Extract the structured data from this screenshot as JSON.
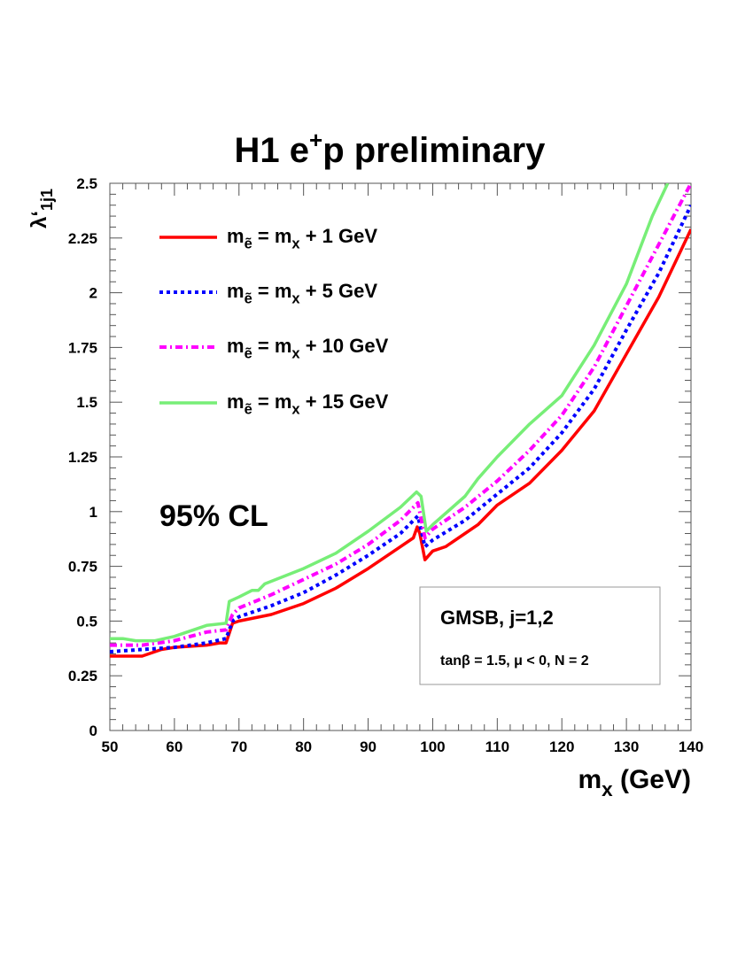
{
  "chart_data": {
    "type": "line",
    "title": "H1 e+p preliminary",
    "title_parts": {
      "main": "H1 e",
      "sup": "+",
      "rest": "p preliminary"
    },
    "xlabel": "m_x (GeV)",
    "ylabel": "λ‘_1j1",
    "xlim": [
      50,
      140
    ],
    "ylim": [
      0,
      2.5
    ],
    "x_ticks": [
      "50",
      "60",
      "70",
      "80",
      "90",
      "100",
      "110",
      "120",
      "130",
      "140"
    ],
    "y_ticks": [
      "0",
      "0.25",
      "0.5",
      "0.75",
      "1",
      "1.25",
      "1.5",
      "1.75",
      "2",
      "2.25",
      "2.5"
    ],
    "grid": false,
    "legend_position": "top-left",
    "annotations": {
      "cl": "95% CL",
      "box_title": "GMSB, j=1,2",
      "box_params": "tanβ = 1.5,  μ < 0,  N = 2"
    },
    "series": [
      {
        "name": "m_ẽ = m_x + 1 GeV",
        "color": "#ff0000",
        "style": "solid",
        "x": [
          50,
          55,
          58,
          60,
          65,
          67,
          68,
          69,
          70,
          75,
          80,
          85,
          90,
          95,
          97,
          97.6,
          98,
          98.8,
          100,
          102,
          105,
          107,
          110,
          115,
          120,
          125,
          130,
          135,
          140
        ],
        "y": [
          0.34,
          0.34,
          0.37,
          0.38,
          0.39,
          0.4,
          0.4,
          0.49,
          0.5,
          0.53,
          0.58,
          0.65,
          0.74,
          0.84,
          0.88,
          0.93,
          0.9,
          0.78,
          0.82,
          0.84,
          0.9,
          0.94,
          1.03,
          1.13,
          1.28,
          1.46,
          1.72,
          1.98,
          2.29
        ]
      },
      {
        "name": "m_ẽ = m_x + 5 GeV",
        "color": "#0000ff",
        "style": "dotted",
        "x": [
          50,
          55,
          60,
          65,
          68,
          69,
          70,
          75,
          80,
          85,
          90,
          95,
          97.7,
          98.8,
          100,
          105,
          110,
          115,
          120,
          125,
          130,
          135,
          140
        ],
        "y": [
          0.36,
          0.37,
          0.38,
          0.4,
          0.42,
          0.5,
          0.52,
          0.57,
          0.63,
          0.71,
          0.8,
          0.9,
          0.98,
          0.84,
          0.87,
          0.96,
          1.08,
          1.2,
          1.36,
          1.56,
          1.83,
          2.09,
          2.4
        ]
      },
      {
        "name": "m_ẽ = m_x + 10 GeV",
        "color": "#ff00ff",
        "style": "dash-dot",
        "x": [
          50,
          55,
          60,
          65,
          68,
          69,
          70,
          75,
          80,
          85,
          90,
          95,
          97.7,
          98.8,
          100,
          105,
          110,
          115,
          120,
          125,
          130,
          135,
          140
        ],
        "y": [
          0.39,
          0.39,
          0.41,
          0.45,
          0.46,
          0.53,
          0.56,
          0.62,
          0.69,
          0.76,
          0.85,
          0.96,
          1.04,
          0.88,
          0.92,
          1.02,
          1.14,
          1.28,
          1.44,
          1.66,
          1.94,
          2.22,
          2.5
        ]
      },
      {
        "name": "m_ẽ = m_x + 15 GeV",
        "color": "#77ee77",
        "style": "solid",
        "x": [
          50,
          52,
          54,
          57,
          60,
          65,
          68,
          68.5,
          70,
          72,
          73,
          74,
          80,
          85,
          90,
          95,
          97.5,
          98.2,
          99,
          100,
          105,
          107,
          110,
          115,
          120,
          125,
          130,
          134,
          136.4
        ],
        "y": [
          0.42,
          0.42,
          0.41,
          0.41,
          0.43,
          0.48,
          0.49,
          0.59,
          0.61,
          0.64,
          0.64,
          0.67,
          0.74,
          0.81,
          0.91,
          1.02,
          1.09,
          1.07,
          0.91,
          0.94,
          1.07,
          1.15,
          1.25,
          1.4,
          1.53,
          1.76,
          2.04,
          2.35,
          2.5
        ]
      }
    ]
  }
}
